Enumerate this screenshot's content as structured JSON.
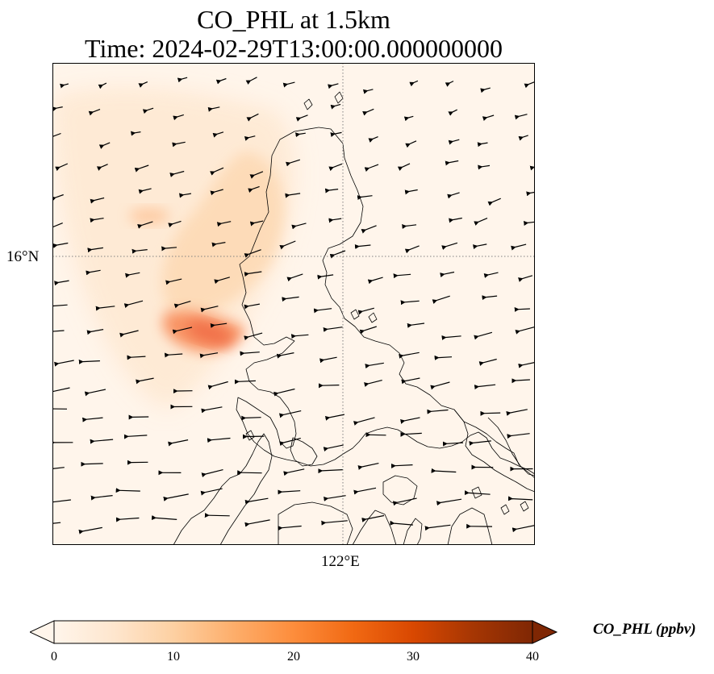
{
  "figure": {
    "title_line1": "CO_PHL at 1.5km",
    "title_line2": "Time: 2024-02-29T13:00:00.000000000"
  },
  "map": {
    "lat_tick_label": "16°N",
    "lon_tick_label": "122°E",
    "gridline_style": "dotted grey",
    "background_color": "#fff5eb",
    "coastline_color": "#000000",
    "wind_vector_color": "#000000",
    "concentration_field": [
      {
        "level": 4,
        "color": "#fee9d3"
      },
      {
        "level": 8,
        "color": "#fdd9b4"
      },
      {
        "level": 12,
        "color": "#fdbe8e"
      },
      {
        "level": 17,
        "color": "#f88c5a"
      },
      {
        "level": 20,
        "color": "#f06b45"
      }
    ]
  },
  "colorbar": {
    "label": "CO_PHL (ppbv)",
    "min": 0,
    "max": 40,
    "extend": "both",
    "colormap": "Oranges",
    "stops": [
      "#fff5eb",
      "#fee6ce",
      "#fdd0a2",
      "#fdae6b",
      "#fd8d3c",
      "#f16913",
      "#d94801",
      "#a63603",
      "#7f2704"
    ],
    "ticks": [
      "0",
      "10",
      "20",
      "30",
      "40"
    ]
  }
}
